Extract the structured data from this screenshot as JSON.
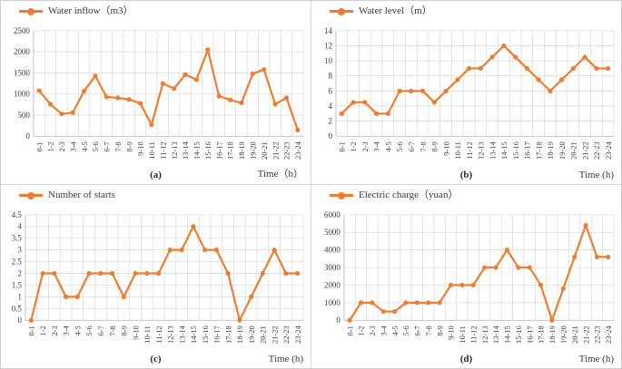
{
  "style": {
    "accent": "#ED7D31",
    "gridline": "#D9D9D9",
    "axis_line": "#BFBFBF",
    "text": "#404040"
  },
  "chart_data": [
    {
      "type": "line",
      "legend": "Water inflow（m3）",
      "panel_letter": "(a)",
      "xlabel": "Time（h）",
      "categories": [
        "0-1",
        "1-2",
        "2-3",
        "3-4",
        "4-5",
        "5-6",
        "6-7",
        "7-8",
        "8-9",
        "9-10",
        "10-11",
        "11-12",
        "12-13",
        "13-14",
        "14-15",
        "15-16",
        "16-17",
        "17-18",
        "18-19",
        "19-20",
        "20-21",
        "21-22",
        "22-23",
        "23-24"
      ],
      "values": [
        1080,
        760,
        530,
        560,
        1070,
        1430,
        930,
        910,
        870,
        780,
        270,
        1250,
        1130,
        1460,
        1340,
        2050,
        950,
        860,
        790,
        1480,
        1580,
        760,
        910,
        150
      ],
      "ylim": [
        0,
        2500
      ],
      "yticks": [
        0,
        500,
        1000,
        1500,
        2000,
        2500
      ],
      "grid": true,
      "legend_position": "top-left"
    },
    {
      "type": "line",
      "legend": "Water level（m）",
      "panel_letter": "(b)",
      "xlabel": "Time (h)",
      "categories": [
        "0-1",
        "1-2",
        "2-3",
        "3-4",
        "4-5",
        "5-6",
        "6-7",
        "7-8",
        "8-9",
        "9-10",
        "10-11",
        "11-12",
        "12-13",
        "13-14",
        "14-15",
        "15-16",
        "16-17",
        "17-18",
        "18-19",
        "19-20",
        "20-21",
        "21-22",
        "22-23",
        "23-24"
      ],
      "values": [
        3,
        4.5,
        4.5,
        3,
        3,
        6,
        6,
        6,
        4.5,
        6,
        7.5,
        9,
        9,
        10.5,
        12,
        10.5,
        9,
        7.5,
        6,
        7.5,
        9,
        10.5,
        9,
        9
      ],
      "ylim": [
        0,
        14
      ],
      "yticks": [
        0,
        2,
        4,
        6,
        8,
        10,
        12,
        14
      ],
      "grid": true,
      "legend_position": "top-left"
    },
    {
      "type": "line",
      "legend": "Number of starts",
      "panel_letter": "(c)",
      "xlabel": "Time (h)",
      "categories": [
        "0-1",
        "1-2",
        "2-3",
        "3-4",
        "4-5",
        "5-6",
        "6-7",
        "7-8",
        "8-9",
        "9-10",
        "10-11",
        "11-12",
        "12-13",
        "13-14",
        "14-15",
        "15-16",
        "16-17",
        "17-18",
        "18-19",
        "19-20",
        "20-21",
        "21-22",
        "22-23",
        "23-24"
      ],
      "values": [
        0,
        2,
        2,
        1,
        1,
        2,
        2,
        2,
        1,
        2,
        2,
        2,
        3,
        3,
        4,
        3,
        3,
        2,
        0,
        1,
        2,
        3,
        2,
        2
      ],
      "ylim": [
        0,
        4.5
      ],
      "yticks": [
        0,
        0.5,
        1,
        1.5,
        2,
        2.5,
        3,
        3.5,
        4,
        4.5
      ],
      "grid": true,
      "legend_position": "top-left"
    },
    {
      "type": "line",
      "legend": "Electric charge（yuan）",
      "panel_letter": "(d)",
      "xlabel": "Time (h)",
      "categories": [
        "0-1",
        "1-2",
        "2-3",
        "3-4",
        "4-5",
        "5-6",
        "6-7",
        "7-8",
        "8-9",
        "9-10",
        "10-11",
        "11-12",
        "12-13",
        "13-14",
        "14-15",
        "15-16",
        "16-17",
        "17-18",
        "18-19",
        "19-20",
        "20-21",
        "21-22",
        "22-23",
        "23-24"
      ],
      "values": [
        0,
        1000,
        1000,
        500,
        500,
        1000,
        1000,
        1000,
        1000,
        2000,
        2000,
        2000,
        3000,
        3000,
        4000,
        3000,
        3000,
        2000,
        0,
        1800,
        3600,
        5400,
        3600,
        3600
      ],
      "ylim": [
        0,
        6000
      ],
      "yticks": [
        0,
        1000,
        2000,
        3000,
        4000,
        5000,
        6000
      ],
      "grid": true,
      "legend_position": "top-left"
    }
  ]
}
